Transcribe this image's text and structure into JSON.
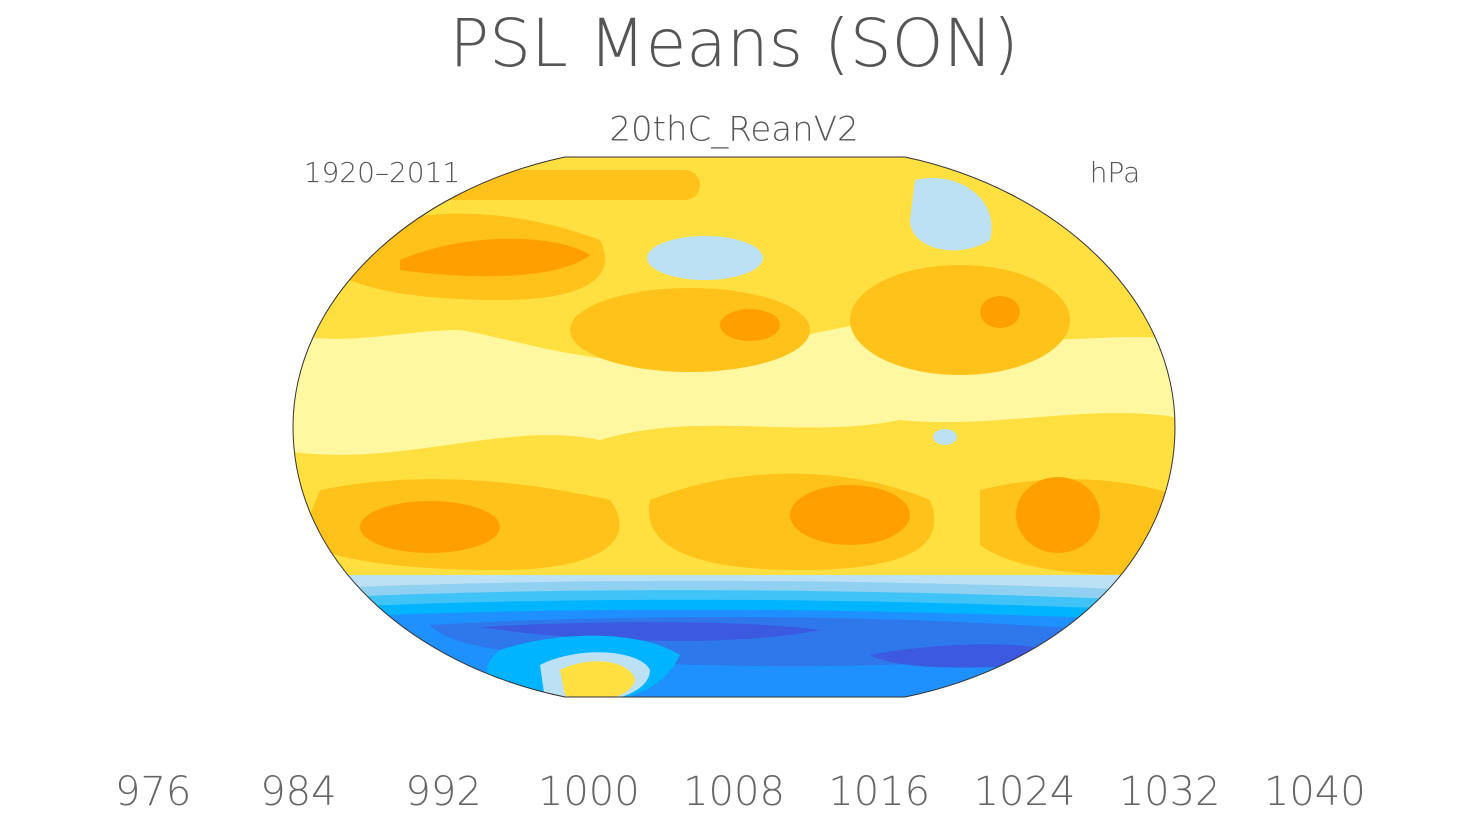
{
  "chart_data": {
    "type": "contour-map",
    "title": "PSL Means (SON)",
    "subtitle": "20thC_ReanV2",
    "left_label": "1920–2011",
    "right_label": "hPa",
    "colorbar": {
      "colors": [
        "#8228f0",
        "#3a0af5",
        "#1a1ef0",
        "#3c5ae0",
        "#2e78ec",
        "#1e90ff",
        "#00b4ff",
        "#40c4f8",
        "#90d0f0",
        "#bce0f4",
        "#fff8a0",
        "#ffe040",
        "#ffc21a",
        "#ffa000",
        "#ff7800",
        "#ff3c00",
        "#ff0000",
        "#d40000",
        "#dc3c3c",
        "#ffb4b4"
      ],
      "clim": [
        968,
        1048
      ],
      "ticks": [
        976,
        984,
        992,
        1000,
        1008,
        1016,
        1024,
        1032,
        1040
      ]
    }
  }
}
